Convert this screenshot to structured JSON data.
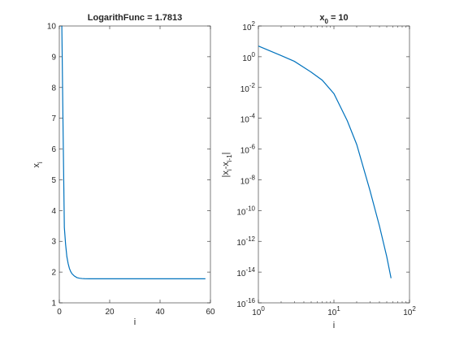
{
  "chart_data": [
    {
      "type": "line",
      "title": "LogarithFunc = 1.7813",
      "xlabel": "i",
      "ylabel": {
        "base": "x",
        "sub": "i"
      },
      "xlim": [
        0,
        60
      ],
      "ylim": [
        1,
        10
      ],
      "x_ticks": [
        0,
        20,
        40,
        60
      ],
      "y_ticks": [
        1,
        2,
        3,
        4,
        5,
        6,
        7,
        8,
        9,
        10
      ],
      "grid": false,
      "color": "#0072bd",
      "series": [
        {
          "x": [
            1,
            1.5,
            2,
            2.5,
            3,
            3.5,
            4,
            4.5,
            5,
            6,
            7,
            8,
            9,
            10,
            12,
            15,
            20,
            25,
            30,
            40,
            50,
            58
          ],
          "y": [
            10,
            6.6,
            3.45,
            2.9,
            2.5,
            2.28,
            2.12,
            2.02,
            1.95,
            1.87,
            1.82,
            1.8,
            1.79,
            1.785,
            1.782,
            1.7813,
            1.7813,
            1.7813,
            1.7813,
            1.7813,
            1.7813,
            1.7813
          ]
        }
      ]
    },
    {
      "type": "line",
      "title": {
        "base": "x",
        "sub": "0",
        "rest": " = 10"
      },
      "xlabel": "i",
      "ylabel": {
        "a": "|x",
        "a_sub": "i",
        "b": "-x",
        "b_sub": "i-1",
        "c": "|"
      },
      "xscale": "log",
      "yscale": "log",
      "xlim": [
        1,
        100
      ],
      "ylim": [
        1e-16,
        100
      ],
      "x_ticks": [
        {
          "value": 1,
          "base": "10",
          "exp": "0"
        },
        {
          "value": 10,
          "base": "10",
          "exp": "1"
        },
        {
          "value": 100,
          "base": "10",
          "exp": "2"
        }
      ],
      "y_ticks": [
        {
          "value": 100.0,
          "base": "10",
          "exp": "2"
        },
        {
          "value": 1.0,
          "base": "10",
          "exp": "0"
        },
        {
          "value": 0.01,
          "base": "10",
          "exp": "-2"
        },
        {
          "value": 0.0001,
          "base": "10",
          "exp": "-4"
        },
        {
          "value": 1e-06,
          "base": "10",
          "exp": "-6"
        },
        {
          "value": 1e-08,
          "base": "10",
          "exp": "-8"
        },
        {
          "value": 1e-10,
          "base": "10",
          "exp": "-10"
        },
        {
          "value": 1e-12,
          "base": "10",
          "exp": "-12"
        },
        {
          "value": 1e-14,
          "base": "10",
          "exp": "-14"
        },
        {
          "value": 1e-16,
          "base": "10",
          "exp": "-16"
        }
      ],
      "grid": false,
      "color": "#0072bd",
      "series": [
        {
          "x": [
            1,
            2,
            3,
            5,
            7,
            10,
            15,
            20,
            30,
            40,
            50,
            57
          ],
          "y": [
            5,
            1.2,
            0.5,
            0.1,
            0.03,
            0.004,
            7e-05,
            2e-06,
            2e-09,
            1e-11,
            1e-13,
            4e-15
          ]
        }
      ]
    }
  ]
}
